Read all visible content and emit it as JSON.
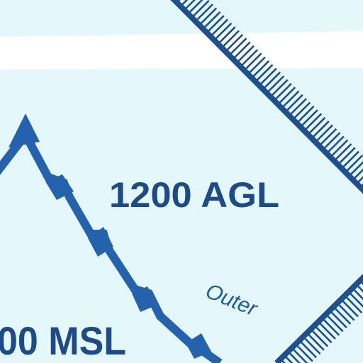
{
  "labels": {
    "agl": "1200 AGL",
    "msl": "00 MSL",
    "outer": "Outer"
  },
  "colors": {
    "background": "#e4f7fb",
    "road": "#ffffff",
    "boundary": "#1e4f8e",
    "shelf": "#2462ad",
    "text": "#1d4a88"
  }
}
